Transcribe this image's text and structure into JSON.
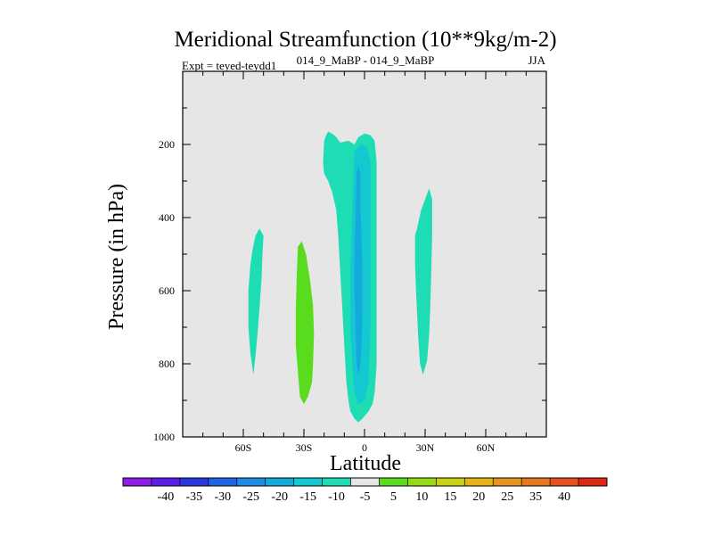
{
  "chart_data": {
    "type": "contour",
    "title": "Meridional Streamfunction (10**9kg/m-2)",
    "subtitle_left": "Expt = teyed-teydd1",
    "subtitle_center": "014_9_MaBP - 014_9_MaBP",
    "subtitle_right": "JJA",
    "xlabel": "Latitude",
    "ylabel": "Pressure (in hPa)",
    "xlim": [
      -90,
      90
    ],
    "ylim": [
      1000,
      0
    ],
    "x_ticks": [
      {
        "value": -60,
        "label": "60S"
      },
      {
        "value": -30,
        "label": "30S"
      },
      {
        "value": 0,
        "label": "0"
      },
      {
        "value": 30,
        "label": "30N"
      },
      {
        "value": 60,
        "label": "60N"
      }
    ],
    "y_ticks": [
      {
        "value": 200,
        "label": "200"
      },
      {
        "value": 400,
        "label": "400"
      },
      {
        "value": 600,
        "label": "600"
      },
      {
        "value": 800,
        "label": "800"
      },
      {
        "value": 1000,
        "label": "1000"
      }
    ],
    "background_color": "#e6e6e6",
    "colorbar": {
      "labels": [
        "-40",
        "-35",
        "-30",
        "-25",
        "-20",
        "-15",
        "-10",
        "-5",
        "5",
        "10",
        "15",
        "20",
        "25",
        "35",
        "40"
      ],
      "colors": [
        "#8c1ee6",
        "#5a1ee6",
        "#2838dc",
        "#1e64e6",
        "#1e8ce6",
        "#14aadc",
        "#14c8d2",
        "#1edcb4",
        "#e6e6e6",
        "#5adc1e",
        "#96dc14",
        "#c8d214",
        "#e6b414",
        "#e6961e",
        "#e6781e",
        "#e6501e",
        "#dc2814"
      ]
    },
    "regions": [
      {
        "name": "neg-cell-60s",
        "color": "#1edcb4",
        "points": [
          [
            -55.5,
            490
          ],
          [
            -54,
            450
          ],
          [
            -52,
            430
          ],
          [
            -50,
            450
          ],
          [
            -50.5,
            500
          ],
          [
            -51,
            570
          ],
          [
            -52,
            650
          ],
          [
            -53,
            720
          ],
          [
            -54,
            780
          ],
          [
            -55,
            830
          ],
          [
            -56.5,
            770
          ],
          [
            -57.5,
            700
          ],
          [
            -57.5,
            600
          ],
          [
            -56.5,
            530
          ]
        ]
      },
      {
        "name": "pos-cell-30s",
        "color": "#5adc1e",
        "points": [
          [
            -33,
            480
          ],
          [
            -31,
            465
          ],
          [
            -29,
            500
          ],
          [
            -27,
            570
          ],
          [
            -25.5,
            640
          ],
          [
            -25,
            720
          ],
          [
            -25.5,
            800
          ],
          [
            -26,
            850
          ],
          [
            -28,
            890
          ],
          [
            -30,
            910
          ],
          [
            -32,
            890
          ],
          [
            -33,
            820
          ],
          [
            -34,
            750
          ],
          [
            -34,
            650
          ],
          [
            -33.5,
            550
          ]
        ]
      },
      {
        "name": "neg-cell-outer",
        "color": "#1edcb4",
        "points": [
          [
            -20,
            190
          ],
          [
            -19,
            175
          ],
          [
            -18,
            165
          ],
          [
            -16,
            170
          ],
          [
            -14,
            180
          ],
          [
            -12,
            195
          ],
          [
            -8,
            190
          ],
          [
            -5,
            200
          ],
          [
            -3,
            180
          ],
          [
            0,
            170
          ],
          [
            3,
            175
          ],
          [
            5,
            190
          ],
          [
            6,
            250
          ],
          [
            6,
            400
          ],
          [
            6,
            600
          ],
          [
            6,
            800
          ],
          [
            5,
            880
          ],
          [
            4,
            910
          ],
          [
            2,
            930
          ],
          [
            -1,
            950
          ],
          [
            -3,
            960
          ],
          [
            -5,
            950
          ],
          [
            -7,
            930
          ],
          [
            -8,
            900
          ],
          [
            -9,
            850
          ],
          [
            -10,
            750
          ],
          [
            -11,
            650
          ],
          [
            -12,
            550
          ],
          [
            -13,
            450
          ],
          [
            -14,
            380
          ],
          [
            -16,
            330
          ],
          [
            -18,
            300
          ],
          [
            -20,
            280
          ],
          [
            -20.5,
            250
          ]
        ]
      },
      {
        "name": "neg-cell-mid",
        "color": "#14c8d2",
        "points": [
          [
            -5,
            220
          ],
          [
            -2,
            200
          ],
          [
            1,
            205
          ],
          [
            3,
            250
          ],
          [
            3,
            400
          ],
          [
            3,
            550
          ],
          [
            3,
            700
          ],
          [
            2,
            850
          ],
          [
            0,
            900
          ],
          [
            -3,
            910
          ],
          [
            -5,
            880
          ],
          [
            -6,
            800
          ],
          [
            -7,
            700
          ],
          [
            -7,
            550
          ],
          [
            -6,
            400
          ],
          [
            -5.5,
            300
          ]
        ]
      },
      {
        "name": "neg-cell-core",
        "color": "#14aadc",
        "points": [
          [
            -4,
            280
          ],
          [
            -3,
            260
          ],
          [
            -2,
            280
          ],
          [
            -2,
            380
          ],
          [
            -1.5,
            450
          ],
          [
            -1,
            550
          ],
          [
            -1,
            650
          ],
          [
            -1.5,
            750
          ],
          [
            -2,
            800
          ],
          [
            -3,
            830
          ],
          [
            -4,
            800
          ],
          [
            -4.5,
            700
          ],
          [
            -5,
            600
          ],
          [
            -5,
            500
          ],
          [
            -4.5,
            400
          ]
        ]
      },
      {
        "name": "neg-cell-30n",
        "color": "#1edcb4",
        "points": [
          [
            25,
            450
          ],
          [
            26,
            430
          ],
          [
            28,
            380
          ],
          [
            30,
            350
          ],
          [
            32,
            320
          ],
          [
            33.5,
            350
          ],
          [
            33.5,
            450
          ],
          [
            33,
            550
          ],
          [
            32.5,
            650
          ],
          [
            32,
            720
          ],
          [
            31,
            790
          ],
          [
            29,
            830
          ],
          [
            27.5,
            800
          ],
          [
            26.5,
            720
          ],
          [
            25.5,
            600
          ],
          [
            25,
            530
          ]
        ]
      }
    ]
  }
}
